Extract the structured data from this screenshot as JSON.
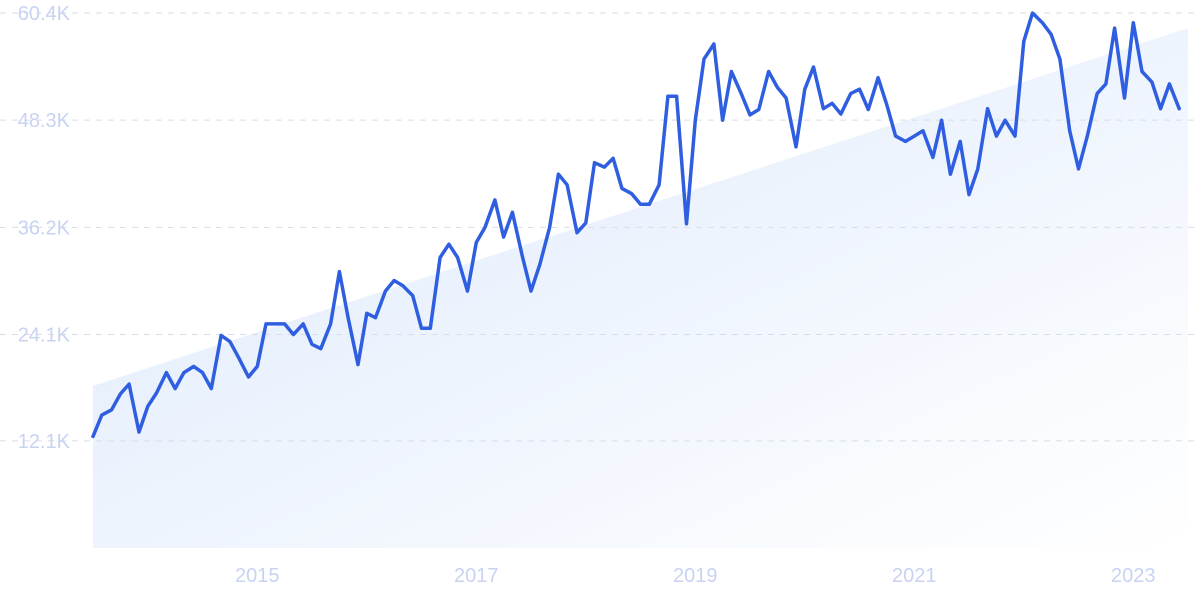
{
  "chart_data": {
    "type": "line",
    "title": "",
    "xlabel": "",
    "ylabel": "",
    "xlim": [
      2013.5,
      2023.5
    ],
    "ylim": [
      0,
      60400
    ],
    "y_ticks": [
      "12.1K",
      "24.1K",
      "36.2K",
      "48.3K",
      "60.4K"
    ],
    "y_tick_values": [
      12100,
      24100,
      36200,
      48300,
      60400
    ],
    "x_ticks": [
      "2015",
      "2017",
      "2019",
      "2021",
      "2023"
    ],
    "x_tick_values": [
      2015,
      2017,
      2019,
      2021,
      2023
    ],
    "grid": true,
    "series": [
      {
        "color": "#2f5fe0",
        "points": [
          [
            2013.5,
            12600
          ],
          [
            2013.58,
            15000
          ],
          [
            2013.67,
            15600
          ],
          [
            2013.75,
            17400
          ],
          [
            2013.83,
            18500
          ],
          [
            2013.92,
            13100
          ],
          [
            2014.0,
            16000
          ],
          [
            2014.08,
            17500
          ],
          [
            2014.17,
            19800
          ],
          [
            2014.25,
            18000
          ],
          [
            2014.33,
            19800
          ],
          [
            2014.42,
            20500
          ],
          [
            2014.5,
            19800
          ],
          [
            2014.58,
            18000
          ],
          [
            2014.67,
            24000
          ],
          [
            2014.75,
            23300
          ],
          [
            2014.83,
            21500
          ],
          [
            2014.92,
            19300
          ],
          [
            2015.0,
            20500
          ],
          [
            2015.08,
            25300
          ],
          [
            2015.17,
            25300
          ],
          [
            2015.25,
            25300
          ],
          [
            2015.33,
            24100
          ],
          [
            2015.42,
            25300
          ],
          [
            2015.5,
            23000
          ],
          [
            2015.58,
            22500
          ],
          [
            2015.67,
            25300
          ],
          [
            2015.75,
            31200
          ],
          [
            2015.83,
            26000
          ],
          [
            2015.92,
            20700
          ],
          [
            2016.0,
            26500
          ],
          [
            2016.08,
            26000
          ],
          [
            2016.17,
            29000
          ],
          [
            2016.25,
            30200
          ],
          [
            2016.33,
            29600
          ],
          [
            2016.42,
            28500
          ],
          [
            2016.5,
            24800
          ],
          [
            2016.58,
            24800
          ],
          [
            2016.67,
            32800
          ],
          [
            2016.75,
            34300
          ],
          [
            2016.83,
            32800
          ],
          [
            2016.92,
            29000
          ],
          [
            2017.0,
            34500
          ],
          [
            2017.08,
            36200
          ],
          [
            2017.17,
            39300
          ],
          [
            2017.25,
            35100
          ],
          [
            2017.33,
            37900
          ],
          [
            2017.42,
            33000
          ],
          [
            2017.5,
            29000
          ],
          [
            2017.58,
            32000
          ],
          [
            2017.67,
            36200
          ],
          [
            2017.75,
            42200
          ],
          [
            2017.83,
            41000
          ],
          [
            2017.92,
            35600
          ],
          [
            2018.0,
            36700
          ],
          [
            2018.08,
            43500
          ],
          [
            2018.17,
            43000
          ],
          [
            2018.25,
            44000
          ],
          [
            2018.33,
            40600
          ],
          [
            2018.42,
            40000
          ],
          [
            2018.5,
            38800
          ],
          [
            2018.58,
            38800
          ],
          [
            2018.67,
            41000
          ],
          [
            2018.75,
            51000
          ],
          [
            2018.83,
            51000
          ],
          [
            2018.92,
            36600
          ],
          [
            2019.0,
            48300
          ],
          [
            2019.08,
            55200
          ],
          [
            2019.17,
            56900
          ],
          [
            2019.25,
            48300
          ],
          [
            2019.33,
            53800
          ],
          [
            2019.42,
            51300
          ],
          [
            2019.5,
            48900
          ],
          [
            2019.58,
            49500
          ],
          [
            2019.67,
            53800
          ],
          [
            2019.75,
            52000
          ],
          [
            2019.83,
            50800
          ],
          [
            2019.92,
            45300
          ],
          [
            2020.0,
            51800
          ],
          [
            2020.08,
            54300
          ],
          [
            2020.17,
            49600
          ],
          [
            2020.25,
            50200
          ],
          [
            2020.33,
            49000
          ],
          [
            2020.42,
            51300
          ],
          [
            2020.5,
            51800
          ],
          [
            2020.58,
            49500
          ],
          [
            2020.67,
            53100
          ],
          [
            2020.75,
            50000
          ],
          [
            2020.83,
            46500
          ],
          [
            2020.92,
            45900
          ],
          [
            2021.0,
            46500
          ],
          [
            2021.08,
            47100
          ],
          [
            2021.17,
            44100
          ],
          [
            2021.25,
            48300
          ],
          [
            2021.33,
            42200
          ],
          [
            2021.42,
            45900
          ],
          [
            2021.5,
            39900
          ],
          [
            2021.58,
            42800
          ],
          [
            2021.67,
            49600
          ],
          [
            2021.75,
            46500
          ],
          [
            2021.83,
            48300
          ],
          [
            2021.92,
            46500
          ],
          [
            2022.0,
            57200
          ],
          [
            2022.08,
            60400
          ],
          [
            2022.17,
            59300
          ],
          [
            2022.25,
            58000
          ],
          [
            2022.33,
            55200
          ],
          [
            2022.42,
            47100
          ],
          [
            2022.5,
            42800
          ],
          [
            2022.58,
            46500
          ],
          [
            2022.67,
            51300
          ],
          [
            2022.75,
            52400
          ],
          [
            2022.83,
            58700
          ],
          [
            2022.92,
            50800
          ],
          [
            2023.0,
            59300
          ],
          [
            2023.08,
            53800
          ],
          [
            2023.17,
            52600
          ],
          [
            2023.25,
            49600
          ],
          [
            2023.33,
            52400
          ],
          [
            2023.42,
            49600
          ]
        ]
      }
    ],
    "trend": {
      "color": "#dbe8fb",
      "start": [
        2013.5,
        18300
      ],
      "end": [
        2023.5,
        58700
      ]
    }
  }
}
